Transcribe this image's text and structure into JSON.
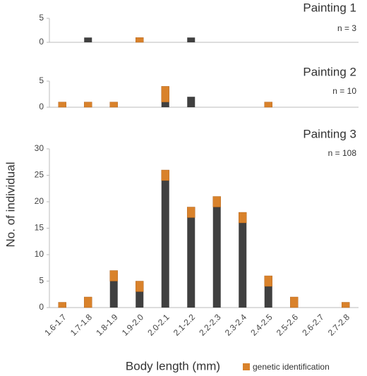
{
  "chart_data": [
    {
      "type": "bar",
      "title": "Painting 1",
      "annotation": "n = 3",
      "ylim": [
        0,
        5
      ],
      "yticks": [
        0,
        5
      ],
      "series": [
        {
          "color": "#404040",
          "values": [
            0,
            1,
            0,
            0,
            0,
            1,
            0,
            0,
            0,
            0,
            0,
            0
          ]
        },
        {
          "name": "genetic identification",
          "color": "#d9822b",
          "values": [
            0,
            0,
            0,
            1,
            0,
            0,
            0,
            0,
            0,
            0,
            0,
            0
          ]
        }
      ]
    },
    {
      "type": "bar",
      "title": "Painting 2",
      "annotation": "n = 10",
      "ylim": [
        0,
        5
      ],
      "yticks": [
        0,
        5
      ],
      "series": [
        {
          "color": "#404040",
          "values": [
            0,
            0,
            0,
            0,
            1,
            2,
            0,
            0,
            0,
            0,
            0,
            0
          ]
        },
        {
          "name": "genetic identification",
          "color": "#d9822b",
          "values": [
            1,
            1,
            1,
            0,
            3,
            0,
            0,
            0,
            1,
            0,
            0,
            0
          ]
        }
      ]
    },
    {
      "type": "bar",
      "title": "Painting 3",
      "annotation": "n = 108",
      "x_label": "Body length (mm)",
      "y_label": "No. of individual",
      "ylim": [
        0,
        30
      ],
      "yticks": [
        0,
        5,
        10,
        15,
        20,
        25,
        30
      ],
      "categories": [
        "1.6-1.7",
        "1.7-1.8",
        "1.8-1.9",
        "1.9-2.0",
        "2.0-2.1",
        "2.1-2.2",
        "2.2-2.3",
        "2.3-2.4",
        "2.4-2.5",
        "2.5-2.6",
        "2.6-2.7",
        "2.7-2.8"
      ],
      "series": [
        {
          "color": "#404040",
          "values": [
            0,
            0,
            5,
            3,
            24,
            17,
            19,
            16,
            4,
            0,
            0,
            0
          ]
        },
        {
          "name": "genetic identification",
          "color": "#d9822b",
          "values": [
            1,
            2,
            2,
            2,
            2,
            2,
            2,
            2,
            2,
            2,
            0,
            1
          ]
        }
      ]
    }
  ]
}
